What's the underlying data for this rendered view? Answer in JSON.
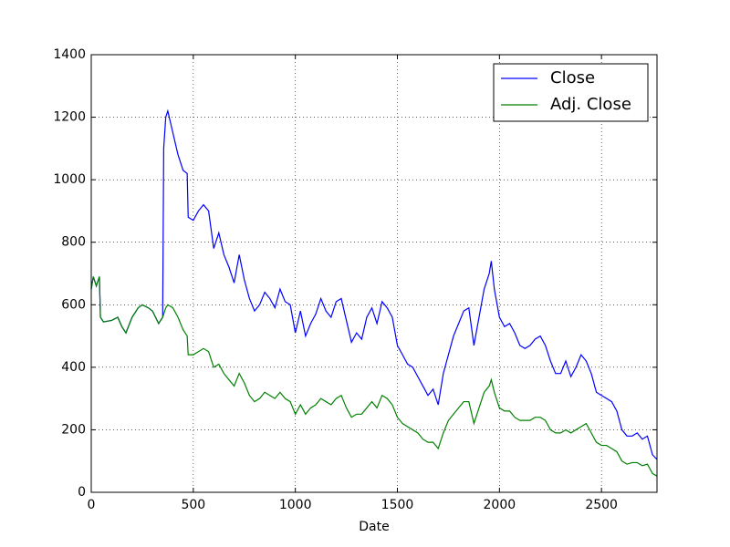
{
  "chart_data": {
    "type": "line",
    "xlabel": "Date",
    "x": [
      0,
      10,
      25,
      40,
      45,
      60,
      100,
      130,
      150,
      170,
      200,
      230,
      250,
      280,
      300,
      330,
      350,
      355,
      365,
      375,
      400,
      425,
      450,
      470,
      475,
      500,
      525,
      550,
      575,
      600,
      625,
      650,
      675,
      700,
      725,
      750,
      775,
      800,
      825,
      850,
      875,
      900,
      925,
      950,
      975,
      1000,
      1025,
      1050,
      1075,
      1100,
      1125,
      1150,
      1175,
      1200,
      1225,
      1250,
      1275,
      1300,
      1325,
      1350,
      1375,
      1400,
      1425,
      1450,
      1475,
      1500,
      1525,
      1550,
      1575,
      1600,
      1625,
      1650,
      1675,
      1700,
      1725,
      1750,
      1775,
      1800,
      1825,
      1850,
      1875,
      1900,
      1925,
      1950,
      1960,
      1975,
      2000,
      2025,
      2050,
      2075,
      2100,
      2125,
      2150,
      2175,
      2200,
      2225,
      2250,
      2275,
      2300,
      2325,
      2350,
      2375,
      2400,
      2425,
      2450,
      2475,
      2500,
      2525,
      2550,
      2575,
      2600,
      2625,
      2650,
      2675,
      2700,
      2725,
      2750,
      2772
    ],
    "series": [
      {
        "name": "Close",
        "color": "#0000ff",
        "values": [
          650,
          690,
          660,
          690,
          560,
          545,
          550,
          560,
          530,
          510,
          560,
          590,
          600,
          590,
          580,
          540,
          560,
          1100,
          1200,
          1220,
          1150,
          1080,
          1030,
          1020,
          880,
          870,
          900,
          920,
          900,
          780,
          830,
          760,
          720,
          670,
          760,
          680,
          620,
          580,
          600,
          640,
          620,
          590,
          650,
          610,
          600,
          510,
          580,
          500,
          540,
          570,
          620,
          580,
          560,
          610,
          620,
          550,
          480,
          510,
          490,
          560,
          590,
          540,
          610,
          590,
          560,
          470,
          440,
          410,
          400,
          370,
          340,
          310,
          330,
          280,
          380,
          440,
          500,
          540,
          580,
          590,
          470,
          560,
          650,
          700,
          740,
          650,
          560,
          530,
          540,
          510,
          470,
          460,
          470,
          490,
          500,
          470,
          420,
          380,
          380,
          420,
          370,
          400,
          440,
          420,
          380,
          320,
          310,
          300,
          290,
          260,
          200,
          180,
          180,
          190,
          170,
          180,
          120,
          105
        ]
      },
      {
        "name": "Adj. Close",
        "color": "#008000",
        "values": [
          650,
          690,
          660,
          690,
          560,
          545,
          550,
          560,
          530,
          510,
          560,
          590,
          600,
          590,
          580,
          540,
          560,
          570,
          590,
          600,
          590,
          560,
          520,
          500,
          440,
          440,
          450,
          460,
          450,
          400,
          410,
          380,
          360,
          340,
          380,
          350,
          310,
          290,
          300,
          320,
          310,
          300,
          320,
          300,
          290,
          250,
          280,
          250,
          270,
          280,
          300,
          290,
          280,
          300,
          310,
          270,
          240,
          250,
          250,
          270,
          290,
          270,
          310,
          300,
          280,
          240,
          220,
          210,
          200,
          190,
          170,
          160,
          160,
          140,
          190,
          230,
          250,
          270,
          290,
          290,
          220,
          270,
          320,
          340,
          360,
          320,
          270,
          260,
          260,
          240,
          230,
          230,
          230,
          240,
          240,
          230,
          200,
          190,
          190,
          200,
          190,
          200,
          210,
          220,
          190,
          160,
          150,
          150,
          140,
          130,
          100,
          90,
          95,
          95,
          85,
          90,
          60,
          52
        ]
      }
    ],
    "xlim": [
      0,
      2772
    ],
    "ylim": [
      0,
      1400
    ],
    "xticks": [
      0,
      500,
      1000,
      1500,
      2000,
      2500
    ],
    "yticks": [
      0,
      200,
      400,
      600,
      800,
      1000,
      1200,
      1400
    ],
    "grid": true,
    "legend": "upper right"
  }
}
